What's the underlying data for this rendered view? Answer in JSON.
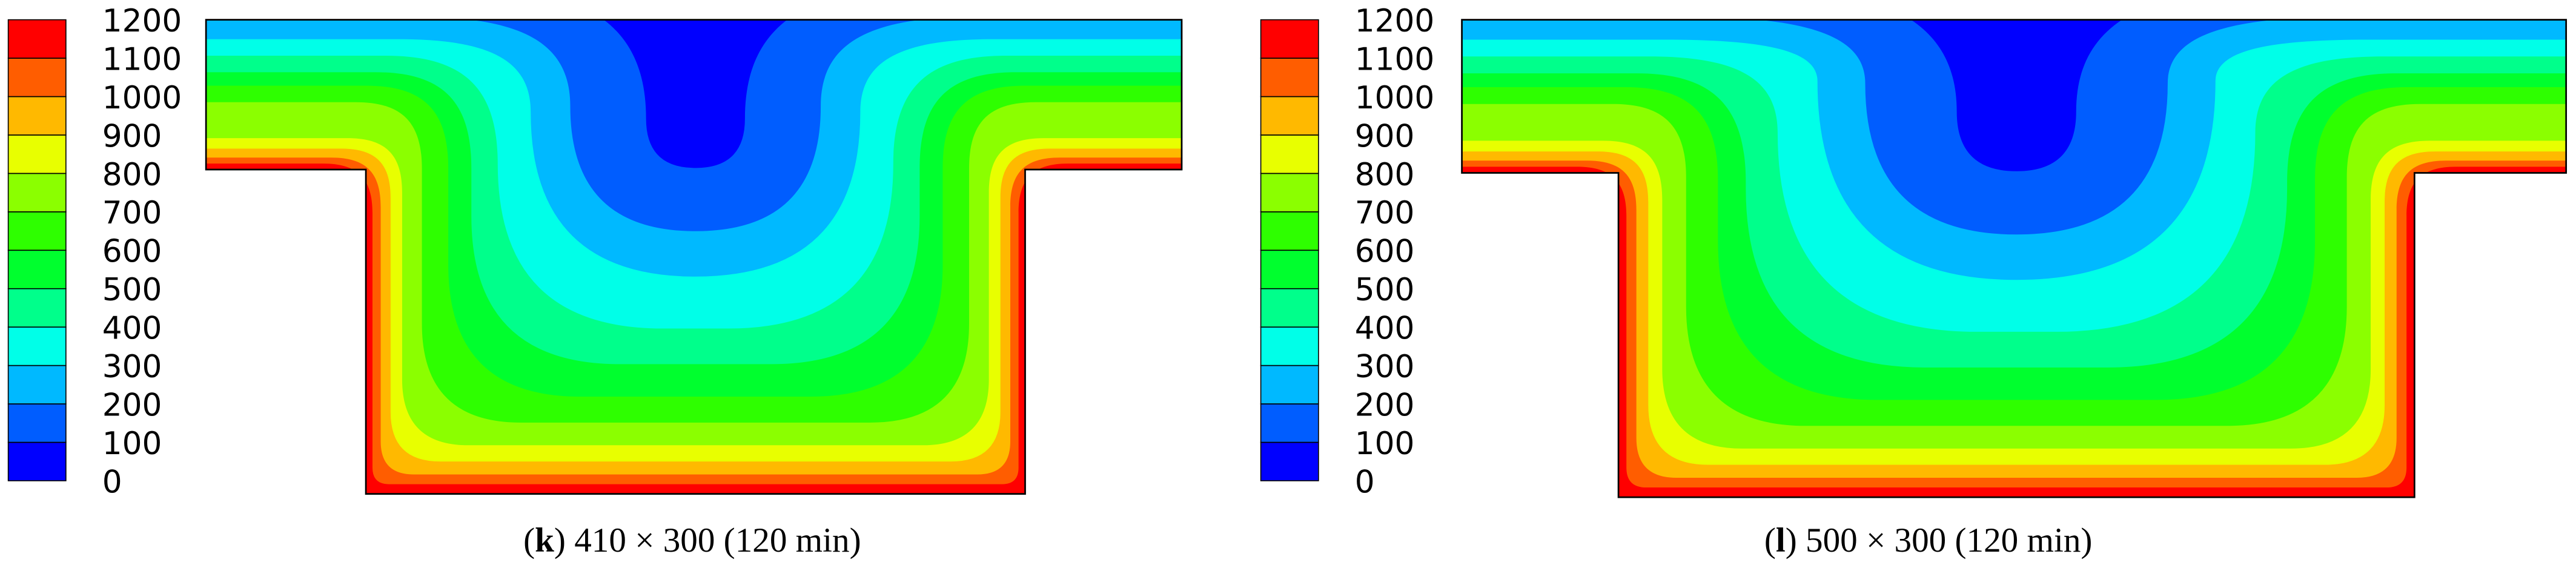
{
  "colors": [
    "#0000ff",
    "#005dff",
    "#00b9ff",
    "#00ffe8",
    "#00ff8b",
    "#00ff2e",
    "#2eff00",
    "#8bff00",
    "#e8ff00",
    "#ffb900",
    "#ff5d00",
    "#ff0000"
  ],
  "panels": [
    {
      "colorbar_labels": [
        1200,
        1100,
        1000,
        900,
        800,
        700,
        600,
        500,
        400,
        300,
        200,
        100,
        0
      ],
      "caption": {
        "open": "(",
        "label": "k",
        "rest": ") 410 × 300 (120 min)"
      }
    },
    {
      "colorbar_labels": [
        1200,
        1100,
        1000,
        900,
        800,
        700,
        600,
        500,
        400,
        300,
        200,
        100,
        0
      ],
      "caption": {
        "open": "(",
        "label": "l",
        "rest": ") 500 × 300 (120 min)"
      }
    }
  ]
}
